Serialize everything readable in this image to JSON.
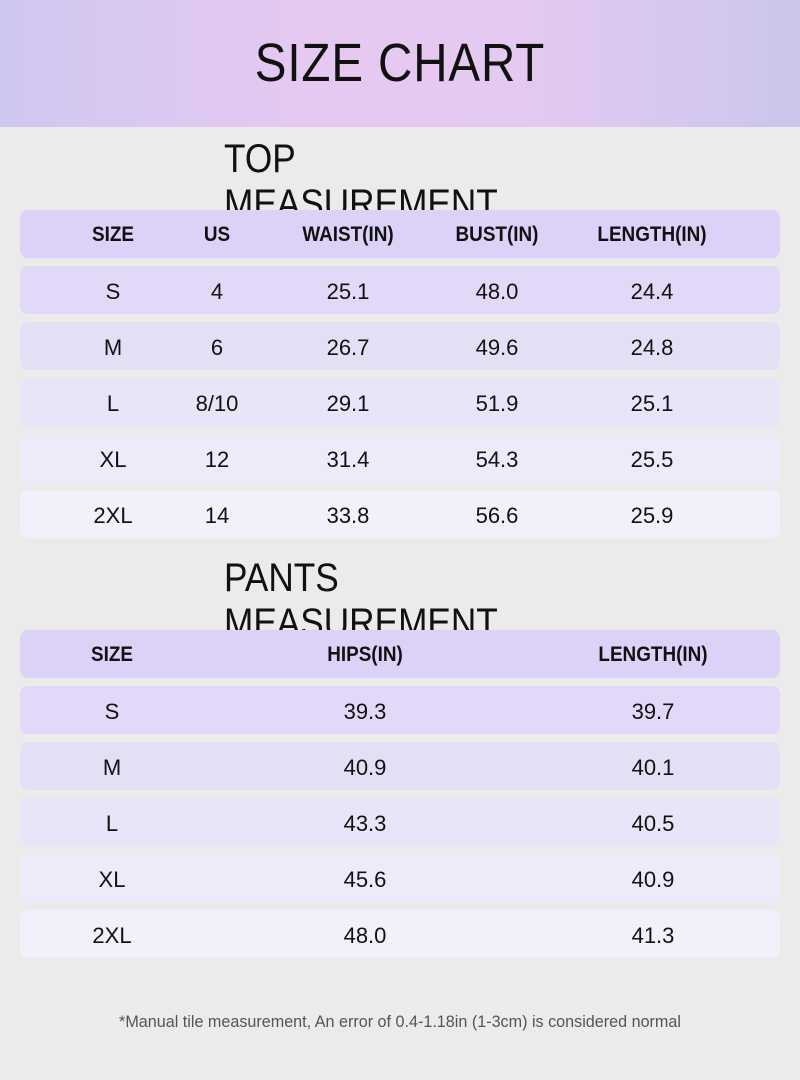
{
  "header": {
    "title": "SIZE CHART"
  },
  "top": {
    "title": "TOP MEASUREMENT",
    "columns": [
      "SIZE",
      "US",
      "WAIST(IN)",
      "BUST(IN)",
      "LENGTH(IN)"
    ],
    "rows": [
      [
        "S",
        "4",
        "25.1",
        "48.0",
        "24.4"
      ],
      [
        "M",
        "6",
        "26.7",
        "49.6",
        "24.8"
      ],
      [
        "L",
        "8/10",
        "29.1",
        "51.9",
        "25.1"
      ],
      [
        "XL",
        "12",
        "31.4",
        "54.3",
        "25.5"
      ],
      [
        "2XL",
        "14",
        "33.8",
        "56.6",
        "25.9"
      ]
    ]
  },
  "pants": {
    "title": "PANTS MEASUREMENT",
    "columns": [
      "SIZE",
      "HIPS(IN)",
      "LENGTH(IN)"
    ],
    "rows": [
      [
        "S",
        "39.3",
        "39.7"
      ],
      [
        "M",
        "40.9",
        "40.1"
      ],
      [
        "L",
        "43.3",
        "40.5"
      ],
      [
        "XL",
        "45.6",
        "40.9"
      ],
      [
        "2XL",
        "48.0",
        "41.3"
      ]
    ]
  },
  "footnote": "*Manual tile measurement, An error of 0.4-1.18in (1-3cm) is considered normal"
}
